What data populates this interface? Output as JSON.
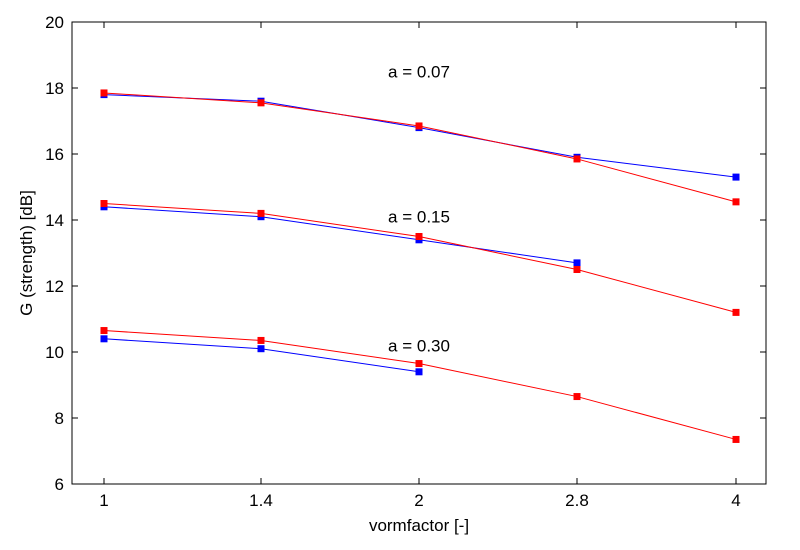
{
  "chart_data": {
    "type": "line",
    "title": "",
    "xlabel": "vormfactor [-]",
    "ylabel": "G (strength) [dB]",
    "x_categories": [
      "1",
      "1.4",
      "2",
      "2.8",
      "4"
    ],
    "ylim": [
      6,
      20
    ],
    "yticks": [
      6,
      8,
      10,
      12,
      14,
      16,
      18,
      20
    ],
    "grid": false,
    "legend": "none",
    "series": [
      {
        "color": "#0000ff",
        "values": [
          17.8,
          17.6,
          16.8,
          15.9,
          15.3
        ]
      },
      {
        "color": "#ff0000",
        "values": [
          17.85,
          17.55,
          16.85,
          15.85,
          14.55
        ]
      },
      {
        "color": "#0000ff",
        "values": [
          14.4,
          14.1,
          13.4,
          12.7,
          null
        ]
      },
      {
        "color": "#ff0000",
        "values": [
          14.5,
          14.2,
          13.5,
          12.5,
          11.2
        ]
      },
      {
        "color": "#0000ff",
        "values": [
          10.4,
          10.1,
          9.4,
          null,
          null
        ]
      },
      {
        "color": "#ff0000",
        "values": [
          10.65,
          10.35,
          9.65,
          8.65,
          7.35
        ]
      }
    ],
    "annotations": [
      {
        "text": "a = 0.07",
        "x": "2",
        "y": 18.5
      },
      {
        "text": "a = 0.15",
        "x": "2",
        "y": 14.1
      },
      {
        "text": "a = 0.30",
        "x": "2",
        "y": 10.2
      }
    ]
  }
}
